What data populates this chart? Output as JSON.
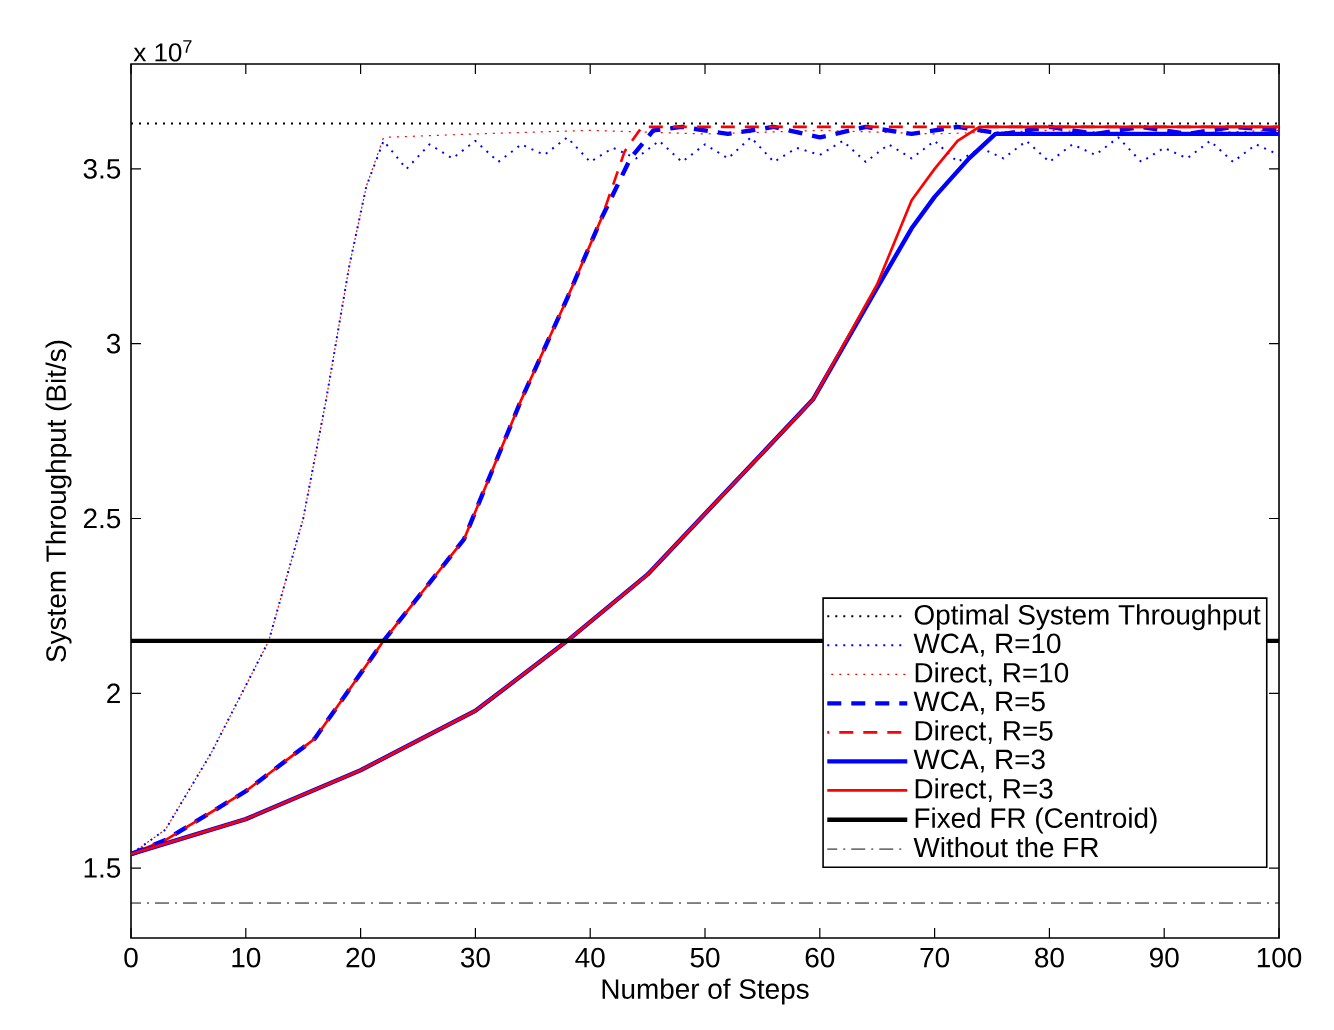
{
  "chart_data": {
    "type": "line",
    "xlabel": "Number of Steps",
    "ylabel": "System Throughput (Bit/s)",
    "annotations": [
      "x 10$^{7}$"
    ],
    "xlim": [
      0,
      100
    ],
    "xticks": [
      0,
      10,
      20,
      30,
      40,
      50,
      60,
      70,
      80,
      90,
      100
    ],
    "ylim": [
      1.3,
      3.8
    ],
    "yticks": [
      1.5,
      2,
      2.5,
      3,
      3.5
    ],
    "legend": "bottom right",
    "series": [
      {
        "name": "Optimal System Throughput",
        "color": "#000000",
        "line_style": "dotted",
        "x": [
          0,
          100
        ],
        "values": [
          3.63,
          3.63
        ]
      },
      {
        "name": "WCA, R=10",
        "color": "#0000ff",
        "line_style": "dotted",
        "x": [
          0,
          3,
          7,
          12,
          15,
          17,
          19,
          20.5,
          22,
          24,
          26,
          28,
          30,
          32,
          34,
          36,
          38,
          40,
          42,
          44,
          46,
          48,
          50,
          52,
          54,
          56,
          58,
          60,
          62,
          64,
          66,
          68,
          70,
          72,
          74,
          76,
          78,
          80,
          82,
          84,
          86,
          88,
          90,
          92,
          94,
          96,
          98,
          100
        ],
        "values": [
          1.54,
          1.61,
          1.83,
          2.15,
          2.5,
          2.84,
          3.22,
          3.45,
          3.58,
          3.5,
          3.57,
          3.53,
          3.58,
          3.52,
          3.57,
          3.54,
          3.59,
          3.52,
          3.56,
          3.53,
          3.58,
          3.52,
          3.57,
          3.53,
          3.59,
          3.52,
          3.56,
          3.54,
          3.58,
          3.52,
          3.57,
          3.53,
          3.58,
          3.52,
          3.56,
          3.53,
          3.58,
          3.52,
          3.57,
          3.54,
          3.59,
          3.52,
          3.56,
          3.53,
          3.58,
          3.52,
          3.57,
          3.54
        ]
      },
      {
        "name": "Direct, R=10",
        "color": "#ff0000",
        "line_style": "dotted",
        "x": [
          0,
          3,
          7,
          12,
          15,
          17,
          19,
          20.5,
          22,
          30,
          40,
          50,
          60,
          70,
          80,
          90,
          100
        ],
        "values": [
          1.54,
          1.61,
          1.83,
          2.15,
          2.5,
          2.84,
          3.22,
          3.45,
          3.59,
          3.6,
          3.61,
          3.6,
          3.61,
          3.6,
          3.61,
          3.6,
          3.61
        ]
      },
      {
        "name": "WCA, R=5",
        "color": "#0000ff",
        "line_style": "dashed",
        "x": [
          0,
          3,
          10,
          16,
          22,
          29,
          34,
          38,
          41,
          43.5,
          45.5,
          48,
          52,
          56,
          60,
          64,
          68,
          72,
          76,
          80,
          84,
          88,
          92,
          96,
          100
        ],
        "values": [
          1.54,
          1.58,
          1.72,
          1.87,
          2.15,
          2.44,
          2.84,
          3.13,
          3.36,
          3.53,
          3.61,
          3.62,
          3.6,
          3.62,
          3.59,
          3.62,
          3.6,
          3.62,
          3.6,
          3.62,
          3.6,
          3.62,
          3.6,
          3.62,
          3.61
        ]
      },
      {
        "name": "Direct, R=5",
        "color": "#ff0000",
        "line_style": "dashed",
        "x": [
          0,
          3,
          10,
          16,
          22,
          29,
          34,
          38,
          41,
          43,
          44.5,
          100
        ],
        "values": [
          1.54,
          1.58,
          1.72,
          1.87,
          2.15,
          2.44,
          2.84,
          3.13,
          3.36,
          3.55,
          3.62,
          3.62
        ]
      },
      {
        "name": "WCA, R=3",
        "color": "#0000ff",
        "line_style": "solid",
        "x": [
          0,
          10,
          20,
          30,
          38,
          45,
          59.4,
          65,
          68,
          70,
          73,
          75.3,
          100
        ],
        "values": [
          1.54,
          1.64,
          1.78,
          1.95,
          2.15,
          2.34,
          2.84,
          3.16,
          3.33,
          3.42,
          3.53,
          3.6,
          3.6
        ]
      },
      {
        "name": "Direct, R=3",
        "color": "#ff0000",
        "line_style": "solid",
        "x": [
          0,
          10,
          20,
          30,
          38,
          45,
          59.4,
          65,
          68,
          70,
          72,
          73.9,
          100
        ],
        "values": [
          1.54,
          1.64,
          1.78,
          1.95,
          2.15,
          2.34,
          2.84,
          3.17,
          3.41,
          3.5,
          3.58,
          3.62,
          3.62
        ]
      },
      {
        "name": "Fixed FR (Centroid)",
        "color": "#000000",
        "line_style": "solid",
        "x": [
          0,
          100
        ],
        "values": [
          2.15,
          2.15
        ]
      },
      {
        "name": "Without the FR",
        "color": "#000000",
        "line_style": "dashdot",
        "x": [
          0,
          100
        ],
        "values": [
          1.4,
          1.4
        ]
      }
    ]
  }
}
